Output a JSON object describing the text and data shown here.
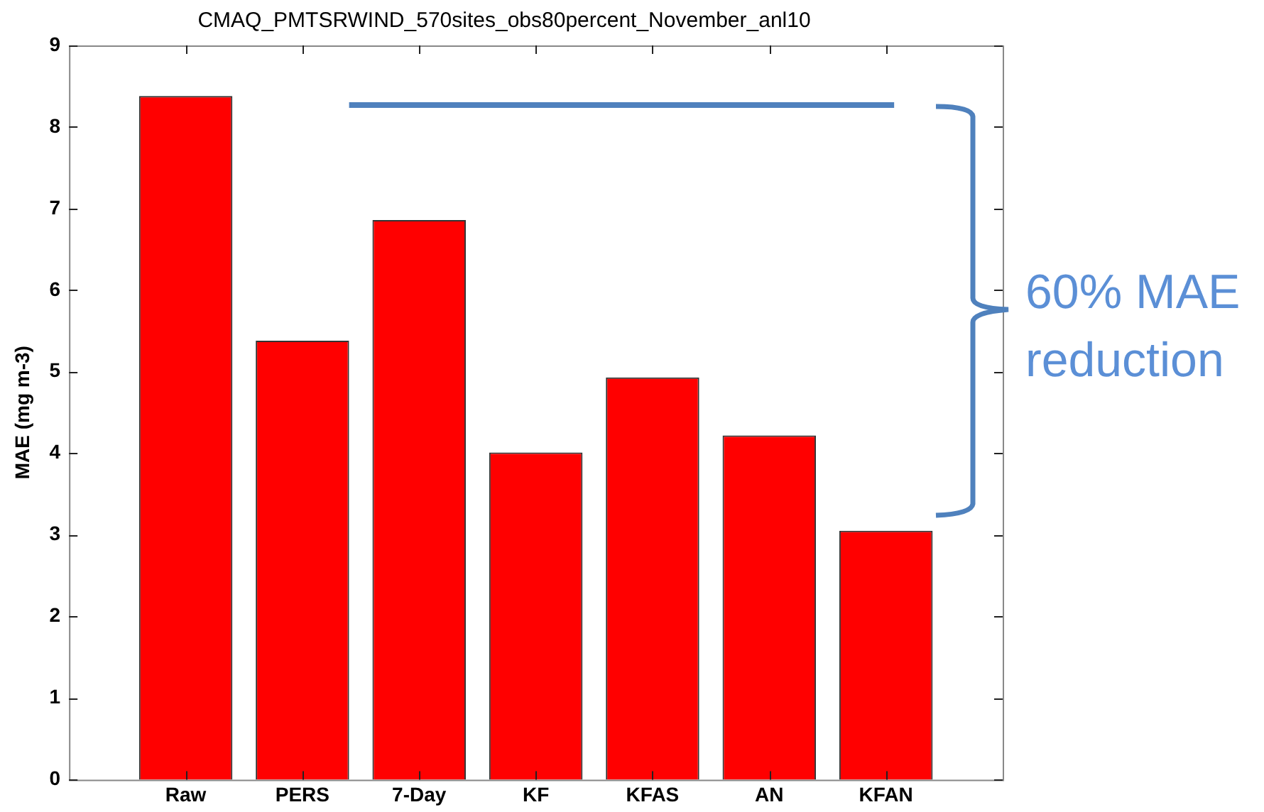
{
  "chart_data": {
    "type": "bar",
    "title": "CMAQ_PMTSRWIND_570sites_obs80percent_November_anl10",
    "ylabel": "MAE (mg m-3)",
    "categories": [
      "Raw",
      "PERS",
      "7-Day",
      "KF",
      "KFAS",
      "AN",
      "KFAN"
    ],
    "values": [
      8.38,
      5.38,
      6.86,
      4.01,
      4.93,
      4.22,
      3.05
    ],
    "color": "#ff0000",
    "ylim": [
      0,
      9
    ],
    "yticks": [
      0,
      1,
      2,
      3,
      4,
      5,
      6,
      7,
      8,
      9
    ],
    "grid": false,
    "legend": false,
    "ref_lines": [
      {
        "axis": "y",
        "value": 8.27,
        "color": "#4f81bd"
      }
    ],
    "annotations": [
      "60% MAE reduction"
    ]
  }
}
